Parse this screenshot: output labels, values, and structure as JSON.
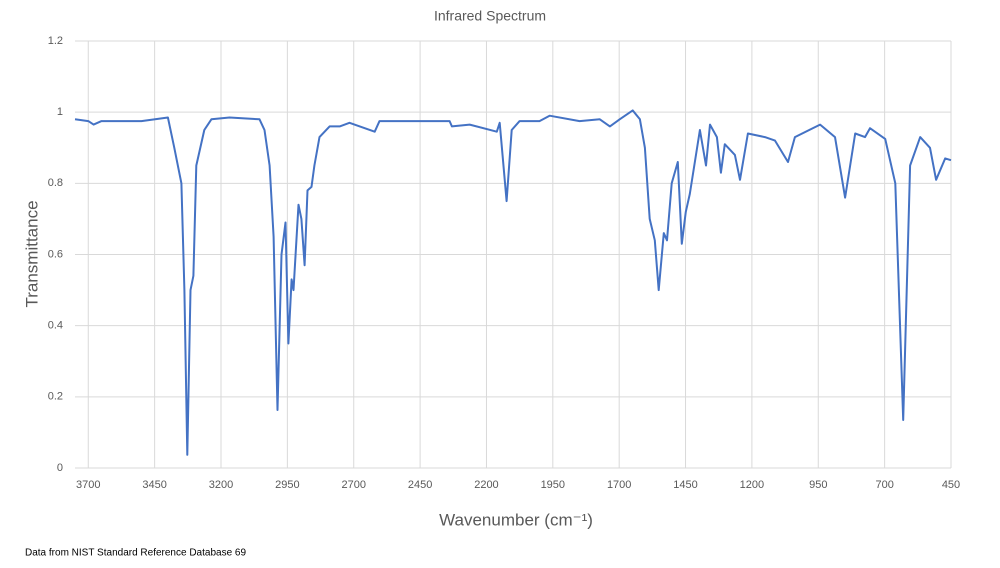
{
  "chart_data": {
    "type": "line",
    "title": "Infrared Spectrum",
    "x_label": "Wavenumber (cm⁻¹)",
    "y_label": "Transmittance",
    "source": "Data from NIST Standard Reference Database 69",
    "x": [
      3750,
      3700,
      3680,
      3650,
      3600,
      3500,
      3400,
      3376,
      3349,
      3338,
      3327,
      3315,
      3304,
      3293,
      3263,
      3236,
      3168,
      3055,
      3036,
      3017,
      3002,
      2987,
      2972,
      2957,
      2946,
      2934,
      2927,
      2908,
      2897,
      2885,
      2874,
      2859,
      2848,
      2829,
      2791,
      2753,
      2716,
      2621,
      2603,
      2452,
      2339,
      2330,
      2263,
      2161,
      2150,
      2124,
      2105,
      2075,
      2000,
      1962,
      1849,
      1773,
      1735,
      1698,
      1649,
      1622,
      1603,
      1585,
      1566,
      1551,
      1532,
      1520,
      1502,
      1479,
      1464,
      1449,
      1434,
      1396,
      1373,
      1358,
      1332,
      1317,
      1302,
      1264,
      1245,
      1215,
      1151,
      1113,
      1064,
      1038,
      943,
      887,
      849,
      811,
      774,
      755,
      698,
      660,
      630,
      604,
      566,
      529,
      506,
      472,
      450
    ],
    "values": [
      0.98,
      0.975,
      0.965,
      0.975,
      0.975,
      0.975,
      0.985,
      0.9,
      0.8,
      0.5,
      0.037,
      0.5,
      0.54,
      0.85,
      0.95,
      0.98,
      0.985,
      0.98,
      0.95,
      0.85,
      0.65,
      0.163,
      0.6,
      0.69,
      0.35,
      0.53,
      0.5,
      0.74,
      0.7,
      0.57,
      0.78,
      0.79,
      0.85,
      0.93,
      0.96,
      0.96,
      0.97,
      0.945,
      0.975,
      0.975,
      0.975,
      0.96,
      0.965,
      0.945,
      0.97,
      0.75,
      0.95,
      0.975,
      0.975,
      0.99,
      0.975,
      0.98,
      0.96,
      0.98,
      1.005,
      0.98,
      0.9,
      0.7,
      0.64,
      0.5,
      0.66,
      0.64,
      0.8,
      0.86,
      0.63,
      0.72,
      0.77,
      0.95,
      0.85,
      0.965,
      0.93,
      0.83,
      0.91,
      0.88,
      0.81,
      0.94,
      0.93,
      0.92,
      0.86,
      0.93,
      0.965,
      0.93,
      0.76,
      0.94,
      0.93,
      0.955,
      0.925,
      0.8,
      0.135,
      0.85,
      0.93,
      0.9,
      0.81,
      0.87,
      0.865
    ],
    "color": "#4472c4",
    "xlim": [
      3750,
      450
    ],
    "xticks": [
      3700,
      3450,
      3200,
      2950,
      2700,
      2450,
      2200,
      1950,
      1700,
      1450,
      1200,
      950,
      700,
      450
    ],
    "ylim": [
      0,
      1.2
    ],
    "yticks": [
      0,
      0.2,
      0.4,
      0.6,
      0.8,
      1,
      1.2
    ],
    "grid": true
  }
}
